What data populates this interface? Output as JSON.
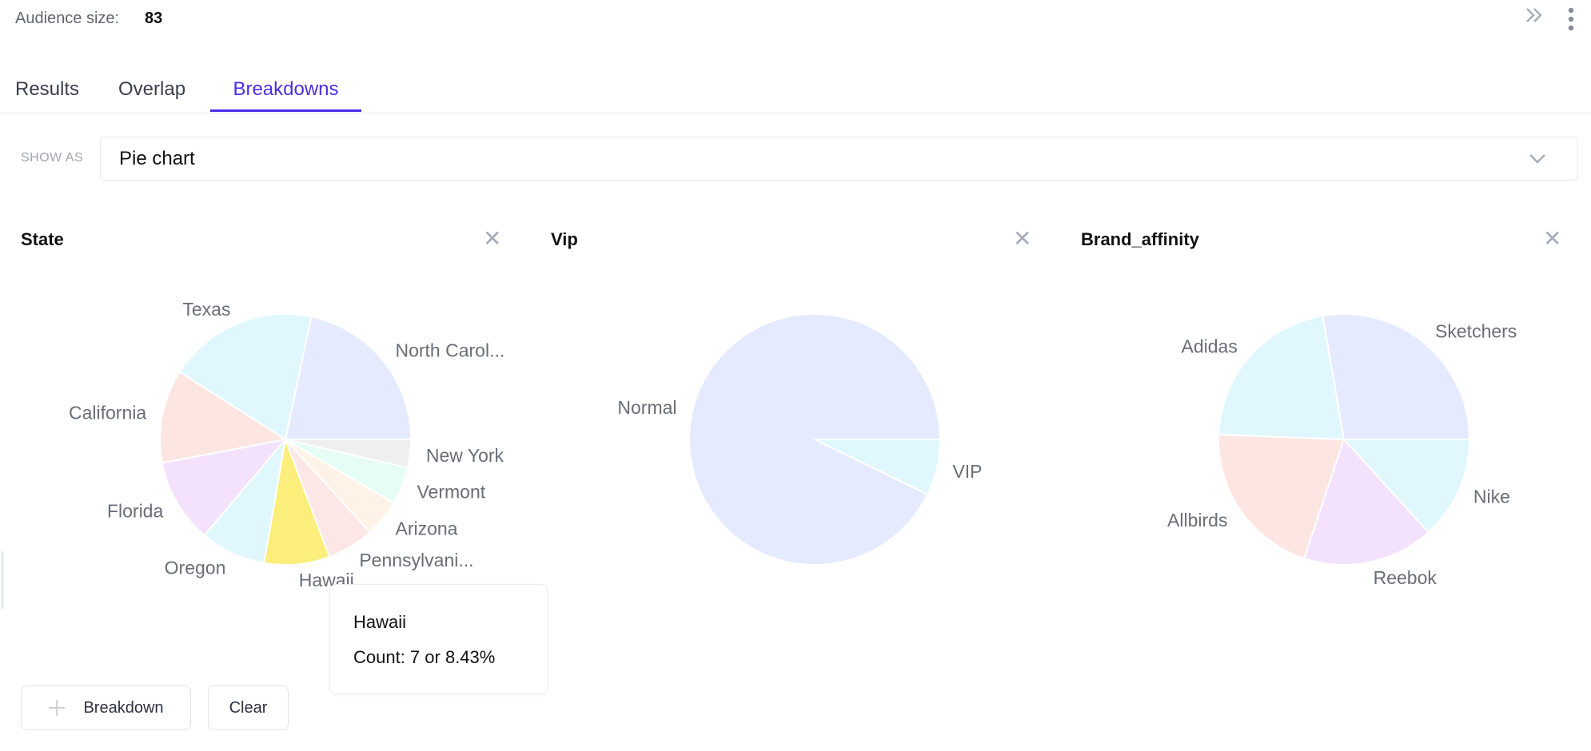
{
  "header": {
    "audience_label": "Audience size:",
    "audience_value": "83",
    "icons": [
      "double-chevron-right-icon",
      "more-vertical-icon"
    ]
  },
  "tabs": [
    {
      "label": "Results",
      "active": false
    },
    {
      "label": "Overlap",
      "active": false
    },
    {
      "label": "Breakdowns",
      "active": true
    }
  ],
  "accent_color": "#4a2ee8",
  "show_as": {
    "label": "SHOW AS",
    "value": "Pie chart"
  },
  "chart_data": [
    {
      "type": "pie",
      "title": "State",
      "total": 83,
      "categories": [
        "North Carol...",
        "Texas",
        "California",
        "Florida",
        "Oregon",
        "Hawaii",
        "Pennsylvani...",
        "Arizona",
        "Vermont",
        "New York"
      ],
      "values": [
        18,
        16,
        10,
        9,
        7,
        7,
        5,
        4,
        4,
        3
      ],
      "colors": [
        "#e6eafe",
        "#e0f8fd",
        "#fde6e2",
        "#f4e2fd",
        "#e0f8fd",
        "#fbee7a",
        "#fde6e6",
        "#fef3e6",
        "#e6fdf5",
        "#efefef"
      ],
      "highlighted": "Hawaii"
    },
    {
      "type": "pie",
      "title": "Vip",
      "total": 83,
      "categories": [
        "Normal",
        "VIP"
      ],
      "values": [
        77,
        6
      ],
      "colors": [
        "#e6eafe",
        "#e0f8fd"
      ]
    },
    {
      "type": "pie",
      "title": "Brand_affinity",
      "total": 83,
      "categories": [
        "Sketchers",
        "Adidas",
        "Allbirds",
        "Reebok",
        "Nike"
      ],
      "values": [
        23,
        18,
        17,
        14,
        11
      ],
      "colors": [
        "#e6eafe",
        "#e0f8fd",
        "#fde6e2",
        "#f4e2fd",
        "#e0f8fd"
      ]
    }
  ],
  "tooltip": {
    "title": "Hawaii",
    "body": "Count: 7 or 8.43%"
  },
  "buttons": {
    "breakdown": "Breakdown",
    "clear": "Clear"
  }
}
